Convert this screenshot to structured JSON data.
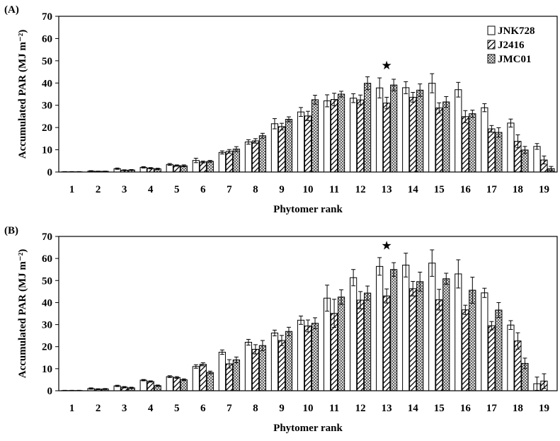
{
  "chart_data": [
    {
      "type": "bar",
      "panel_label": "(A)",
      "title": "",
      "xlabel": "Phytomer rank",
      "ylabel": "Accumulated PAR (MJ m⁻²)",
      "ylim": [
        0,
        70
      ],
      "yticks": [
        0,
        10,
        20,
        30,
        40,
        50,
        60,
        70
      ],
      "categories": [
        "1",
        "2",
        "3",
        "4",
        "5",
        "6",
        "7",
        "8",
        "9",
        "10",
        "11",
        "12",
        "13",
        "14",
        "15",
        "16",
        "17",
        "18",
        "19"
      ],
      "series": [
        {
          "name": "JNK728",
          "values": [
            0.1,
            0.4,
            1.5,
            2.1,
            3.4,
            5.2,
            8.8,
            13.5,
            21.7,
            27.0,
            32.0,
            33.2,
            37.8,
            37.9,
            39.9,
            37.0,
            28.9,
            22.0,
            11.5
          ],
          "errors": [
            0.1,
            0.2,
            0.3,
            0.3,
            0.4,
            1.0,
            0.7,
            1.0,
            2.3,
            2.0,
            2.7,
            2.0,
            4.5,
            2.7,
            4.3,
            3.3,
            1.8,
            1.8,
            1.3
          ]
        },
        {
          "name": "J2416",
          "values": [
            0.1,
            0.3,
            0.8,
            1.7,
            2.9,
            4.5,
            9.3,
            14.0,
            20.4,
            25.2,
            32.6,
            32.4,
            31.0,
            33.6,
            28.8,
            24.9,
            19.4,
            13.8,
            5.4
          ],
          "errors": [
            0.1,
            0.1,
            0.2,
            0.3,
            0.3,
            0.4,
            0.8,
            1.0,
            1.5,
            2.1,
            2.8,
            2.2,
            2.6,
            2.2,
            2.3,
            2.7,
            1.5,
            2.9,
            1.8
          ]
        },
        {
          "name": "JMC01",
          "values": [
            0.1,
            0.3,
            0.9,
            1.4,
            2.8,
            4.8,
            10.3,
            16.3,
            23.7,
            32.5,
            35.0,
            39.9,
            39.1,
            36.8,
            31.5,
            26.2,
            17.8,
            9.9,
            1.5
          ],
          "errors": [
            0.1,
            0.1,
            0.2,
            0.3,
            0.4,
            0.4,
            1.1,
            1.1,
            1.1,
            2.0,
            1.3,
            2.9,
            2.6,
            2.8,
            2.4,
            1.6,
            2.1,
            1.6,
            1.0
          ]
        }
      ],
      "annotations": [
        {
          "text": "★",
          "category": "13",
          "y": 48
        }
      ],
      "legend": "top-right",
      "grid": false
    },
    {
      "type": "bar",
      "panel_label": "(B)",
      "title": "",
      "xlabel": "Phytomer rank",
      "ylabel": "Accumulated PAR (MJ m⁻²)",
      "ylim": [
        0,
        70
      ],
      "yticks": [
        0,
        10,
        20,
        30,
        40,
        50,
        60,
        70
      ],
      "categories": [
        "1",
        "2",
        "3",
        "4",
        "5",
        "6",
        "7",
        "8",
        "9",
        "10",
        "11",
        "12",
        "13",
        "14",
        "15",
        "16",
        "17",
        "18",
        "19"
      ],
      "series": [
        {
          "name": "JNK728",
          "values": [
            0.1,
            1.0,
            2.2,
            4.8,
            6.4,
            11.0,
            17.5,
            22.0,
            26.2,
            32.0,
            42.0,
            51.3,
            56.4,
            57.0,
            57.9,
            53.0,
            44.4,
            29.8,
            3.2
          ],
          "errors": [
            0.1,
            0.3,
            0.3,
            0.3,
            0.4,
            0.8,
            1.0,
            1.3,
            1.3,
            1.9,
            5.9,
            3.7,
            4.0,
            5.4,
            6.0,
            6.4,
            2.1,
            2.0,
            3.0
          ]
        },
        {
          "name": "J2416",
          "values": [
            0.1,
            0.7,
            1.6,
            4.2,
            6.0,
            12.0,
            12.2,
            18.8,
            22.8,
            29.4,
            35.1,
            41.1,
            43.0,
            46.3,
            41.3,
            36.7,
            29.5,
            22.6,
            4.4
          ],
          "errors": [
            0.1,
            0.2,
            0.3,
            0.3,
            0.4,
            0.7,
            1.9,
            2.1,
            2.3,
            2.7,
            6.4,
            3.9,
            3.2,
            3.3,
            4.7,
            2.1,
            1.9,
            3.7,
            3.3
          ]
        },
        {
          "name": "JMC01",
          "values": [
            0.1,
            0.8,
            1.3,
            2.3,
            5.0,
            8.3,
            14.0,
            20.5,
            26.9,
            30.6,
            42.5,
            44.3,
            55.0,
            49.5,
            50.8,
            45.6,
            36.6,
            12.4,
            0
          ],
          "errors": [
            0.1,
            0.2,
            0.3,
            0.3,
            0.4,
            0.6,
            1.3,
            2.3,
            1.9,
            2.5,
            3.3,
            3.2,
            3.1,
            4.3,
            2.5,
            5.9,
            3.4,
            2.4,
            0
          ]
        }
      ],
      "annotations": [
        {
          "text": "★",
          "category": "13",
          "y": 66
        }
      ],
      "legend": "none",
      "grid": false
    }
  ]
}
